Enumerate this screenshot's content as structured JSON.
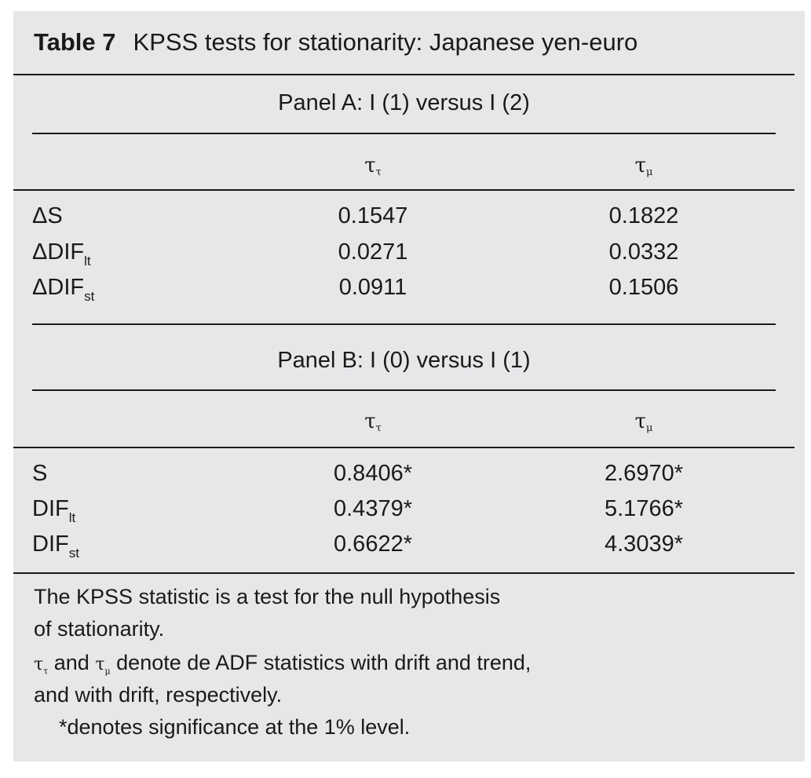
{
  "table": {
    "label": "Table 7",
    "title": "KPSS tests for stationarity: Japanese yen-euro",
    "panels": [
      {
        "title": "Panel A: I (1) versus I (2)",
        "columns": [
          {
            "symbol": "τ",
            "sub": "τ"
          },
          {
            "symbol": "τ",
            "sub": "μ"
          }
        ],
        "rows": [
          {
            "prefix": "Δ",
            "label": "S",
            "sub": "",
            "v1": "0.1547",
            "v2": "0.1822"
          },
          {
            "prefix": "Δ",
            "label": "DIF",
            "sub": "lt",
            "v1": "0.0271",
            "v2": "0.0332"
          },
          {
            "prefix": "Δ",
            "label": "DIF",
            "sub": "st",
            "v1": "0.0911",
            "v2": "0.1506"
          }
        ]
      },
      {
        "title": "Panel B: I (0) versus I (1)",
        "columns": [
          {
            "symbol": "τ",
            "sub": "τ"
          },
          {
            "symbol": "τ",
            "sub": "μ"
          }
        ],
        "rows": [
          {
            "prefix": "",
            "label": "S",
            "sub": "",
            "v1": "0.8406*",
            "v2": "2.6970*"
          },
          {
            "prefix": "",
            "label": "DIF",
            "sub": "lt",
            "v1": "0.4379*",
            "v2": "5.1766*"
          },
          {
            "prefix": "",
            "label": "DIF",
            "sub": "st",
            "v1": "0.6622*",
            "v2": "4.3039*"
          }
        ]
      }
    ],
    "notes": {
      "line1": "The KPSS statistic is a test for the null hypothesis",
      "line2": "of stationarity.",
      "line3_sym1": "τ",
      "line3_sub1": "τ",
      "line3_and": " and ",
      "line3_sym2": "τ",
      "line3_sub2": "μ",
      "line3_rest": " denote de ADF statistics with drift and trend,",
      "line4": "and with drift, respectively.",
      "line5": "*denotes significance at the 1% level."
    }
  }
}
